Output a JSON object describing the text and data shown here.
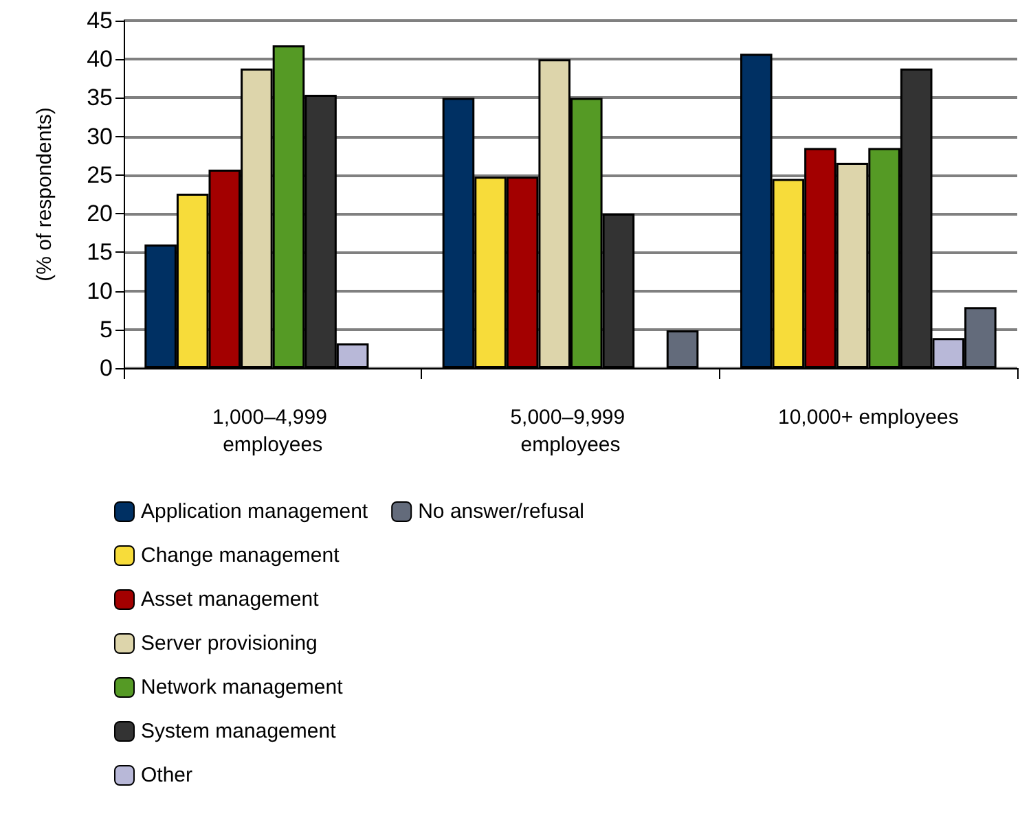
{
  "chart_data": {
    "type": "bar",
    "ylabel": "(% of respondents)",
    "categories": [
      "1,000–4,999 employees",
      "5,000–9,999 employees",
      "10,000+ employees"
    ],
    "series": [
      {
        "name": "Application management",
        "color": "#003063",
        "values": [
          16,
          35,
          40.7
        ]
      },
      {
        "name": "Change management",
        "color": "#f7dc3a",
        "values": [
          22.6,
          24.8,
          24.5
        ]
      },
      {
        "name": "Asset management",
        "color": "#a30000",
        "values": [
          25.7,
          24.8,
          28.5
        ]
      },
      {
        "name": "Server provisioning",
        "color": "#ddd5ab",
        "values": [
          38.8,
          40,
          26.6
        ]
      },
      {
        "name": "Network management",
        "color": "#559a25",
        "values": [
          41.8,
          35,
          28.5
        ]
      },
      {
        "name": "System management",
        "color": "#333333",
        "values": [
          35.4,
          20,
          38.8
        ]
      },
      {
        "name": "Other",
        "color": "#b8b8d8",
        "values": [
          3.2,
          null,
          3.9
        ]
      },
      {
        "name": "No answer/refusal",
        "color": "#636b7b",
        "values": [
          null,
          4.9,
          7.9
        ]
      }
    ],
    "ylim": [
      0,
      45
    ],
    "yticks": [
      0,
      5,
      10,
      15,
      20,
      25,
      30,
      35,
      40,
      45
    ],
    "grid": "y",
    "legend": "bottom left"
  }
}
